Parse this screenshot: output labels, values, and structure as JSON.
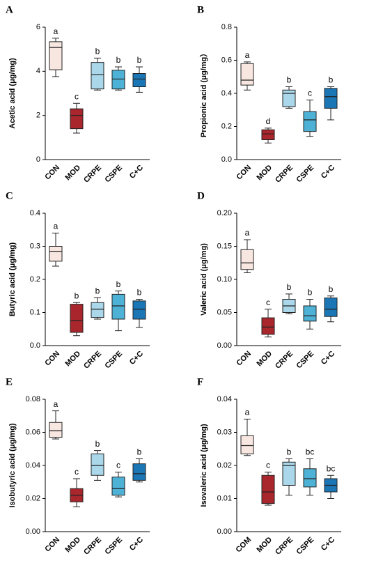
{
  "chart_data": [
    {
      "type": "box",
      "panel": "A",
      "ylabel": "Acetic acid (μg/mg)",
      "categories": [
        "CON",
        "MOD",
        "CRPE",
        "CSPE",
        "C+C"
      ],
      "colors": [
        "#f8e6e0",
        "#a8262c",
        "#aad8ea",
        "#4eb1d6",
        "#1b76b6"
      ],
      "min": [
        3.76,
        1.2,
        3.15,
        3.15,
        3.05
      ],
      "q1": [
        4.07,
        1.4,
        3.2,
        3.2,
        3.3
      ],
      "median": [
        5.08,
        2.0,
        3.85,
        3.65,
        3.65
      ],
      "q3": [
        5.34,
        2.3,
        4.4,
        4.05,
        3.9
      ],
      "max": [
        5.5,
        2.55,
        4.6,
        4.2,
        4.2
      ],
      "letters": [
        "a",
        "c",
        "b",
        "b",
        "b"
      ],
      "ylim": [
        0,
        6
      ],
      "yticks": [
        0,
        2,
        4,
        6
      ]
    },
    {
      "type": "box",
      "panel": "B",
      "ylabel": "Propionic acid (μg/mg）",
      "categories": [
        "CON",
        "MOD",
        "CRPE",
        "CSPE",
        "C+C"
      ],
      "colors": [
        "#f8e6e0",
        "#a8262c",
        "#aad8ea",
        "#4eb1d6",
        "#1b76b6"
      ],
      "min": [
        0.42,
        0.1,
        0.31,
        0.14,
        0.24
      ],
      "q1": [
        0.45,
        0.12,
        0.32,
        0.17,
        0.31
      ],
      "median": [
        0.48,
        0.155,
        0.4,
        0.24,
        0.38
      ],
      "q3": [
        0.58,
        0.18,
        0.42,
        0.29,
        0.43
      ],
      "max": [
        0.59,
        0.19,
        0.44,
        0.36,
        0.44
      ],
      "letters": [
        "a",
        "d",
        "b",
        "c",
        "b"
      ],
      "ylim": [
        0,
        0.8
      ],
      "yticks": [
        {
          "value": 0,
          "label": "0.0"
        },
        0.2,
        0.4,
        0.6,
        0.8
      ]
    },
    {
      "type": "box",
      "panel": "C",
      "ylabel": "Butyric acid (μg/mg)",
      "categories": [
        "CON",
        "MOD",
        "CRPE",
        "CSPE",
        "C+C"
      ],
      "colors": [
        "#f8e6e0",
        "#a8262c",
        "#aad8ea",
        "#4eb1d6",
        "#1b76b6"
      ],
      "min": [
        0.24,
        0.03,
        0.08,
        0.045,
        0.055
      ],
      "q1": [
        0.255,
        0.04,
        0.085,
        0.08,
        0.08
      ],
      "median": [
        0.285,
        0.075,
        0.11,
        0.12,
        0.11
      ],
      "q3": [
        0.3,
        0.125,
        0.13,
        0.155,
        0.135
      ],
      "max": [
        0.34,
        0.13,
        0.145,
        0.165,
        0.14
      ],
      "letters": [
        "a",
        "b",
        "b",
        "b",
        "b"
      ],
      "ylim": [
        0,
        0.4
      ],
      "yticks": [
        {
          "value": 0,
          "label": "0.0"
        },
        0.1,
        0.2,
        0.3,
        0.4
      ]
    },
    {
      "type": "box",
      "panel": "D",
      "ylabel": "Valeric acid (μg/mg)",
      "categories": [
        "CON",
        "MOD",
        "CRPE",
        "CSPE",
        "C+C"
      ],
      "colors": [
        "#f8e6e0",
        "#a8262c",
        "#aad8ea",
        "#4eb1d6",
        "#1b76b6"
      ],
      "min": [
        0.11,
        0.013,
        0.048,
        0.025,
        0.036
      ],
      "q1": [
        0.115,
        0.017,
        0.05,
        0.037,
        0.044
      ],
      "median": [
        0.125,
        0.028,
        0.06,
        0.045,
        0.055
      ],
      "q3": [
        0.145,
        0.042,
        0.07,
        0.06,
        0.072
      ],
      "max": [
        0.16,
        0.055,
        0.078,
        0.07,
        0.075
      ],
      "letters": [
        "a",
        "c",
        "b",
        "b",
        "b"
      ],
      "ylim": [
        0,
        0.2
      ],
      "yticks": [
        {
          "value": 0,
          "label": "0.00"
        },
        0.05,
        {
          "value": 0.1,
          "label": "0.10"
        },
        0.15,
        {
          "value": 0.2,
          "label": "0.20"
        }
      ]
    },
    {
      "type": "box",
      "panel": "E",
      "ylabel": "Isobutyric acid (μg/mg)",
      "categories": [
        "CON",
        "MOD",
        "CRPE",
        "CSPE",
        "C+C"
      ],
      "colors": [
        "#f8e6e0",
        "#a8262c",
        "#aad8ea",
        "#4eb1d6",
        "#1b76b6"
      ],
      "min": [
        0.056,
        0.015,
        0.031,
        0.021,
        0.03
      ],
      "q1": [
        0.057,
        0.018,
        0.034,
        0.022,
        0.031
      ],
      "median": [
        0.061,
        0.022,
        0.04,
        0.026,
        0.035
      ],
      "q3": [
        0.066,
        0.026,
        0.047,
        0.033,
        0.041
      ],
      "max": [
        0.073,
        0.032,
        0.049,
        0.036,
        0.044
      ],
      "letters": [
        "a",
        "c",
        "b",
        "c",
        "b"
      ],
      "ylim": [
        0,
        0.08
      ],
      "yticks": [
        {
          "value": 0,
          "label": "0.00"
        },
        0.02,
        0.04,
        0.06,
        0.08
      ]
    },
    {
      "type": "box",
      "panel": "F",
      "ylabel": "Isovaleric acid (μg/mg)",
      "categories": [
        "COM",
        "MOD",
        "CRPE",
        "CSPE",
        "C+C"
      ],
      "colors": [
        "#f8e6e0",
        "#a8262c",
        "#aad8ea",
        "#4eb1d6",
        "#1b76b6"
      ],
      "min": [
        0.023,
        0.008,
        0.011,
        0.011,
        0.01
      ],
      "q1": [
        0.0235,
        0.0085,
        0.014,
        0.0135,
        0.012
      ],
      "median": [
        0.026,
        0.012,
        0.02,
        0.016,
        0.014
      ],
      "q3": [
        0.029,
        0.017,
        0.021,
        0.019,
        0.016
      ],
      "max": [
        0.034,
        0.018,
        0.022,
        0.022,
        0.017
      ],
      "letters": [
        "a",
        "c",
        "b",
        "bc",
        "bc"
      ],
      "ylim": [
        0,
        0.04
      ],
      "yticks": [
        {
          "value": 0,
          "label": "0.00"
        },
        0.01,
        0.02,
        0.03,
        0.04
      ]
    }
  ]
}
